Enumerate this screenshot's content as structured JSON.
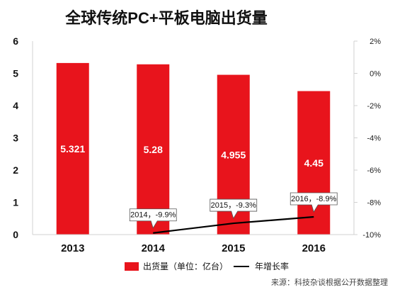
{
  "chart_data": {
    "type": "bar",
    "title": "全球传统PC+平板电脑出货量",
    "categories": [
      "2013",
      "2014",
      "2015",
      "2016"
    ],
    "series": [
      {
        "name": "出货量（单位：亿台）",
        "kind": "bar",
        "axis": "left",
        "values": [
          5.321,
          5.28,
          4.955,
          4.45
        ],
        "labels": [
          "5.321",
          "5.28",
          "4.955",
          "4.45"
        ],
        "color": "#e8141c"
      },
      {
        "name": "年增长率",
        "kind": "line",
        "axis": "right",
        "values": [
          null,
          -9.9,
          -9.3,
          -8.9
        ],
        "labels": [
          null,
          "2014，-9.9%",
          "2015，-9.3%",
          "2016，-8.9%"
        ],
        "color": "#000000"
      }
    ],
    "ylim": [
      0,
      6
    ],
    "yticks": [
      "0",
      "1",
      "2",
      "3",
      "4",
      "5",
      "6"
    ],
    "y2lim": [
      -10,
      2
    ],
    "y2ticks": [
      "-10%",
      "-8%",
      "-6%",
      "-4%",
      "-2%",
      "0%",
      "2%"
    ],
    "legend_position": "bottom",
    "grid": false
  },
  "source_note": "来源：科技杂谈根据公开数据整理"
}
